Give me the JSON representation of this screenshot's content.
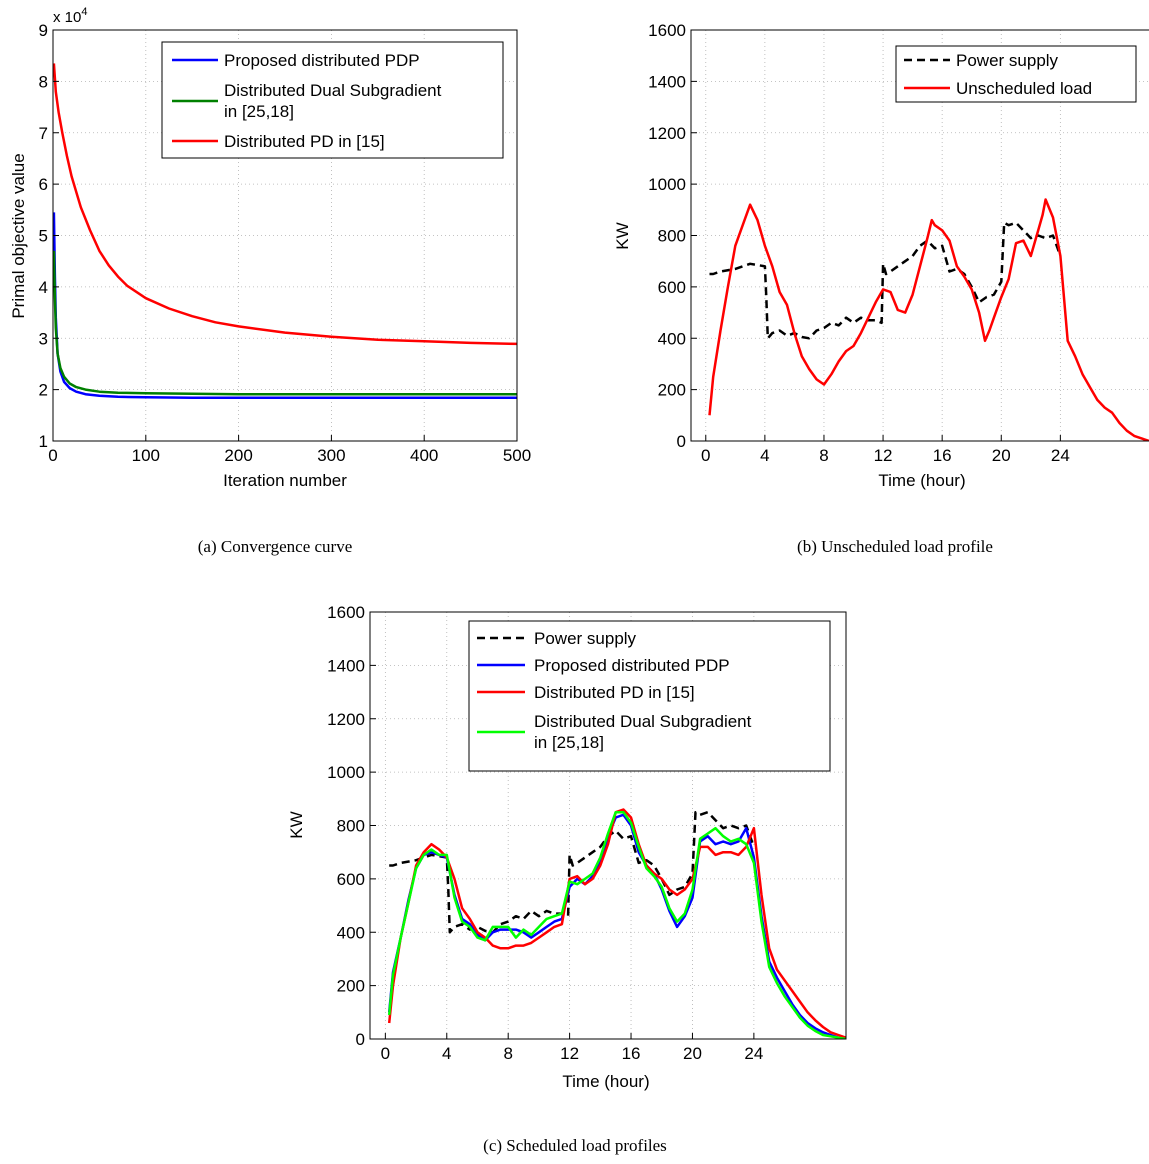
{
  "charts": {
    "a": {
      "caption": "(a) Convergence curve",
      "xlabel": "Iteration number",
      "ylabel": "Primal objective value",
      "exponent_label": "x 10",
      "exponent_sup": "4"
    },
    "b": {
      "caption": "(b) Unscheduled load profile",
      "xlabel": "Time (hour)",
      "ylabel": "KW"
    },
    "c": {
      "caption": "(c) Scheduled load profiles",
      "xlabel": "Time (hour)",
      "ylabel": "KW"
    }
  },
  "colors": {
    "blue": "#0000ff",
    "green": "#008000",
    "red": "#ff0000",
    "black": "#000000",
    "lightgreen": "#00ff00"
  },
  "chart_data": [
    {
      "id": "a",
      "type": "line",
      "xlabel": "Iteration number",
      "ylabel": "Primal objective value",
      "y_scale_note": "x 10^4",
      "xlim": [
        0,
        500
      ],
      "ylim": [
        1,
        9
      ],
      "xticks": [
        "0",
        "100",
        "200",
        "300",
        "400",
        "500"
      ],
      "yticks": [
        "1",
        "2",
        "3",
        "4",
        "5",
        "6",
        "7",
        "8",
        "9"
      ],
      "grid": true,
      "legend_position": "top-right",
      "series": [
        {
          "name": "Proposed distributed PDP",
          "color": "blue",
          "x": [
            1,
            2,
            3,
            5,
            8,
            12,
            18,
            25,
            35,
            50,
            70,
            100,
            150,
            200,
            300,
            400,
            500
          ],
          "y": [
            5.45,
            4.2,
            3.4,
            2.7,
            2.35,
            2.15,
            2.03,
            1.96,
            1.91,
            1.88,
            1.86,
            1.85,
            1.84,
            1.84,
            1.84,
            1.84,
            1.84
          ]
        },
        {
          "name": "Distributed Dual Subgradient\nin [25,18]",
          "color": "green",
          "x": [
            1,
            2,
            3,
            5,
            8,
            12,
            18,
            25,
            35,
            50,
            70,
            100,
            150,
            200,
            300,
            400,
            500
          ],
          "y": [
            4.7,
            3.8,
            3.2,
            2.7,
            2.42,
            2.25,
            2.12,
            2.05,
            2.0,
            1.96,
            1.94,
            1.93,
            1.92,
            1.91,
            1.91,
            1.91,
            1.91
          ]
        },
        {
          "name": "Distributed PD in [15]",
          "color": "red",
          "x": [
            1,
            3,
            6,
            10,
            15,
            20,
            30,
            40,
            50,
            60,
            70,
            80,
            100,
            125,
            150,
            175,
            200,
            250,
            300,
            350,
            400,
            450,
            500
          ],
          "y": [
            8.35,
            7.8,
            7.4,
            7.0,
            6.55,
            6.15,
            5.55,
            5.1,
            4.7,
            4.42,
            4.2,
            4.02,
            3.78,
            3.58,
            3.43,
            3.31,
            3.23,
            3.11,
            3.03,
            2.97,
            2.94,
            2.91,
            2.89
          ]
        }
      ]
    },
    {
      "id": "b",
      "type": "line",
      "xlabel": "Time (hour)",
      "ylabel": "KW",
      "xlim": [
        -1,
        30
      ],
      "ylim": [
        0,
        1600
      ],
      "xticks": [
        "0",
        "4",
        "8",
        "12",
        "16",
        "20",
        "24"
      ],
      "yticks": [
        "0",
        "200",
        "400",
        "600",
        "800",
        "1000",
        "1200",
        "1400",
        "1600"
      ],
      "grid": true,
      "legend_position": "top-right",
      "series": [
        {
          "name": "Power supply",
          "color": "black",
          "dash": true,
          "x": [
            0.25,
            0.5,
            1,
            2,
            3,
            4,
            4.1,
            4.2,
            4.5,
            5,
            5.5,
            6,
            6.5,
            7,
            7.5,
            8,
            8.5,
            9,
            9.5,
            10,
            10.5,
            11,
            11.5,
            11.9,
            12,
            12.2,
            12.5,
            13,
            13.5,
            14,
            14.5,
            15,
            15.5,
            16,
            16.5,
            17,
            17.5,
            18,
            18.5,
            19,
            19.5,
            20,
            20.2,
            20.5,
            21,
            21.5,
            22,
            22.5,
            23,
            23.5,
            24
          ],
          "y": [
            650,
            650,
            660,
            670,
            690,
            680,
            560,
            400,
            420,
            430,
            410,
            420,
            405,
            400,
            430,
            440,
            460,
            450,
            480,
            460,
            480,
            470,
            470,
            460,
            690,
            650,
            660,
            680,
            700,
            720,
            760,
            780,
            750,
            760,
            660,
            670,
            650,
            600,
            540,
            560,
            570,
            620,
            850,
            840,
            850,
            820,
            790,
            800,
            790,
            800,
            720
          ]
        },
        {
          "name": "Unscheduled load",
          "color": "red",
          "x": [
            0.25,
            0.5,
            1,
            1.5,
            2,
            2.5,
            3,
            3.5,
            4,
            4.5,
            5,
            5.5,
            6,
            6.5,
            7,
            7.5,
            8,
            8.5,
            9,
            9.5,
            10,
            10.5,
            11,
            11.5,
            12,
            12.5,
            13,
            13.5,
            14,
            14.5,
            15,
            15.3,
            15.5,
            16,
            16.5,
            17,
            17.5,
            18,
            18.5,
            18.9,
            19.2,
            19.5,
            20,
            20.5,
            21,
            21.5,
            22,
            22.5,
            22.8,
            23,
            23.5,
            24,
            24.5,
            25,
            25.5,
            26,
            26.5,
            27,
            27.5,
            28,
            28.5,
            29,
            29.5,
            30
          ],
          "y": [
            100,
            250,
            430,
            600,
            760,
            840,
            920,
            860,
            760,
            680,
            580,
            530,
            420,
            330,
            280,
            240,
            220,
            260,
            310,
            350,
            370,
            420,
            480,
            540,
            590,
            580,
            510,
            500,
            570,
            680,
            790,
            860,
            840,
            820,
            780,
            680,
            640,
            590,
            500,
            390,
            430,
            480,
            560,
            630,
            770,
            780,
            720,
            820,
            880,
            940,
            870,
            720,
            390,
            330,
            260,
            210,
            160,
            130,
            110,
            70,
            40,
            20,
            10,
            0
          ]
        }
      ]
    },
    {
      "id": "c",
      "type": "line",
      "xlabel": "Time (hour)",
      "ylabel": "KW",
      "xlim": [
        -1,
        30
      ],
      "ylim": [
        0,
        1600
      ],
      "xticks": [
        "0",
        "4",
        "8",
        "12",
        "16",
        "20",
        "24"
      ],
      "yticks": [
        "0",
        "200",
        "400",
        "600",
        "800",
        "1000",
        "1200",
        "1400",
        "1600"
      ],
      "grid": true,
      "legend_position": "top-right",
      "series": [
        {
          "name": "Power supply",
          "color": "black",
          "dash": true,
          "x": [
            0.25,
            0.5,
            1,
            2,
            3,
            4,
            4.1,
            4.2,
            4.5,
            5,
            5.5,
            6,
            6.5,
            7,
            7.5,
            8,
            8.5,
            9,
            9.5,
            10,
            10.5,
            11,
            11.5,
            11.9,
            12,
            12.2,
            12.5,
            13,
            13.5,
            14,
            14.5,
            15,
            15.5,
            16,
            16.5,
            17,
            17.5,
            18,
            18.5,
            19,
            19.5,
            20,
            20.2,
            20.5,
            21,
            21.5,
            22,
            22.5,
            23,
            23.5,
            24
          ],
          "y": [
            650,
            650,
            660,
            670,
            690,
            680,
            560,
            400,
            420,
            430,
            410,
            420,
            405,
            400,
            430,
            440,
            460,
            450,
            480,
            460,
            480,
            470,
            470,
            460,
            690,
            650,
            660,
            680,
            700,
            720,
            760,
            780,
            750,
            760,
            660,
            670,
            650,
            600,
            540,
            560,
            570,
            620,
            850,
            840,
            850,
            820,
            790,
            800,
            790,
            800,
            720
          ]
        },
        {
          "name": "Proposed distributed PDP",
          "color": "blue",
          "x": [
            0.25,
            0.5,
            1,
            1.5,
            2,
            2.5,
            3,
            3.5,
            4,
            4.5,
            5,
            5.5,
            6,
            6.5,
            7,
            7.5,
            8,
            8.5,
            9,
            9.5,
            10,
            10.5,
            11,
            11.5,
            12,
            12.5,
            13,
            13.5,
            14,
            14.5,
            15,
            15.5,
            16,
            16.5,
            17,
            17.5,
            18,
            18.5,
            19,
            19.5,
            20,
            20.5,
            21,
            21.5,
            22,
            22.5,
            23,
            23.5,
            24,
            24.5,
            25,
            25.5,
            26,
            26.5,
            27,
            27.5,
            28,
            28.5,
            29,
            29.5,
            30
          ],
          "y": [
            100,
            250,
            380,
            520,
            640,
            690,
            700,
            690,
            680,
            540,
            450,
            430,
            390,
            370,
            400,
            410,
            410,
            410,
            400,
            380,
            400,
            420,
            440,
            450,
            570,
            600,
            580,
            610,
            660,
            760,
            830,
            840,
            800,
            700,
            650,
            620,
            560,
            480,
            420,
            460,
            530,
            740,
            760,
            730,
            740,
            730,
            740,
            790,
            680,
            460,
            290,
            230,
            180,
            130,
            90,
            60,
            40,
            25,
            15,
            5,
            0
          ]
        },
        {
          "name": "Distributed PD in [15]",
          "color": "red",
          "x": [
            0.25,
            0.5,
            1,
            1.5,
            2,
            2.5,
            3,
            3.5,
            4,
            4.5,
            5,
            5.5,
            6,
            6.5,
            7,
            7.5,
            8,
            8.5,
            9,
            9.5,
            10,
            10.5,
            11,
            11.5,
            12,
            12.5,
            13,
            13.5,
            14,
            14.5,
            15,
            15.5,
            16,
            16.5,
            17,
            17.5,
            18,
            18.5,
            19,
            19.5,
            20,
            20.5,
            21,
            21.5,
            22,
            22.5,
            23,
            23.5,
            24,
            24.5,
            25,
            25.5,
            26,
            26.5,
            27,
            27.5,
            28,
            28.5,
            29,
            29.5,
            30
          ],
          "y": [
            60,
            200,
            380,
            510,
            650,
            700,
            730,
            710,
            680,
            600,
            490,
            450,
            400,
            380,
            350,
            340,
            340,
            350,
            350,
            360,
            380,
            400,
            420,
            430,
            600,
            610,
            580,
            600,
            650,
            730,
            850,
            860,
            830,
            730,
            650,
            620,
            600,
            560,
            540,
            560,
            600,
            720,
            720,
            690,
            700,
            700,
            690,
            720,
            790,
            540,
            340,
            260,
            220,
            180,
            140,
            100,
            70,
            45,
            25,
            15,
            5
          ]
        },
        {
          "name": "Distributed Dual Subgradient\nin [25,18]",
          "color": "lightgreen",
          "x": [
            0.25,
            0.5,
            1,
            1.5,
            2,
            2.5,
            3,
            3.5,
            4,
            4.5,
            5,
            5.5,
            6,
            6.5,
            7,
            7.5,
            8,
            8.5,
            9,
            9.5,
            10,
            10.5,
            11,
            11.5,
            12,
            12.5,
            13,
            13.5,
            14,
            14.5,
            15,
            15.5,
            16,
            16.5,
            17,
            17.5,
            18,
            18.5,
            19,
            19.5,
            20,
            20.5,
            21,
            21.5,
            22,
            22.5,
            23,
            23.5,
            24,
            24.5,
            25,
            25.5,
            26,
            26.5,
            27,
            27.5,
            28,
            28.5,
            29,
            29.5,
            30
          ],
          "y": [
            90,
            240,
            380,
            510,
            640,
            690,
            710,
            690,
            690,
            530,
            440,
            420,
            380,
            370,
            420,
            420,
            420,
            380,
            410,
            390,
            420,
            450,
            460,
            470,
            590,
            580,
            600,
            620,
            680,
            770,
            850,
            850,
            810,
            720,
            640,
            610,
            570,
            490,
            440,
            470,
            560,
            750,
            770,
            790,
            760,
            740,
            750,
            730,
            660,
            440,
            270,
            210,
            160,
            120,
            80,
            50,
            30,
            15,
            10,
            5,
            0
          ]
        }
      ]
    }
  ]
}
